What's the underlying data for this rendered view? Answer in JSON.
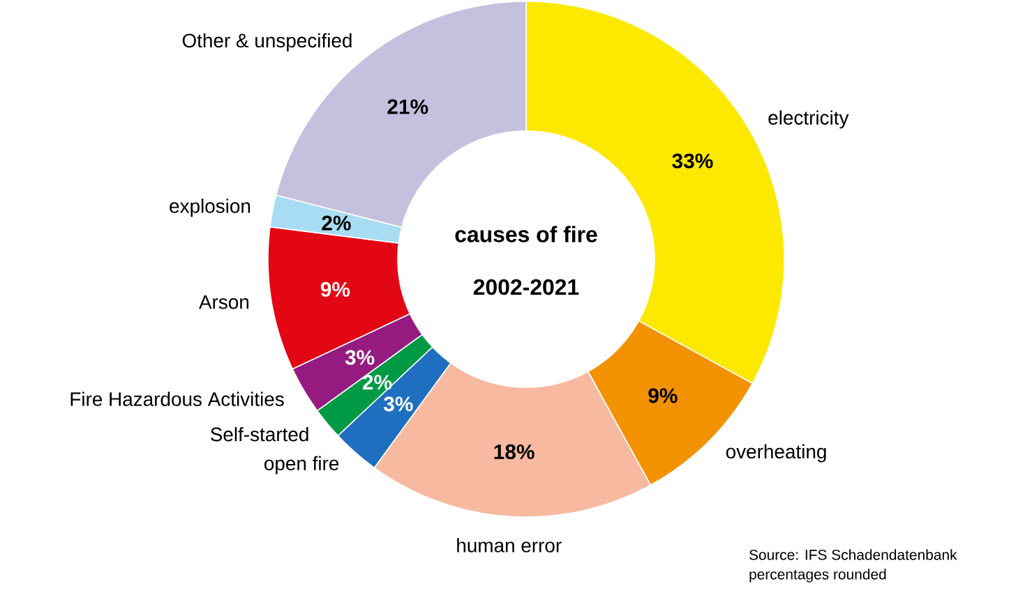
{
  "chart_data": {
    "type": "donut",
    "title": "causes of fire",
    "subtitle": "2002-2021",
    "categories": [
      "electricity",
      "overheating",
      "human error",
      "open fire",
      "Self-started",
      "Fire Hazardous Activities",
      "Arson",
      "explosion",
      "Other & unspecified"
    ],
    "values": [
      33,
      9,
      18,
      3,
      2,
      3,
      9,
      2,
      21
    ],
    "colors": [
      "#fde800",
      "#f39200",
      "#f7b9a0",
      "#1f6fc0",
      "#009a44",
      "#951b81",
      "#e30613",
      "#a8dcf2",
      "#c6c0df"
    ],
    "value_labels": [
      "33%",
      "9%",
      "18%",
      "3%",
      "2%",
      "3%",
      "9%",
      "2%",
      "21%"
    ],
    "annotations": [
      "Source: IFS Schadendatenbank",
      "percentages rounded"
    ]
  }
}
